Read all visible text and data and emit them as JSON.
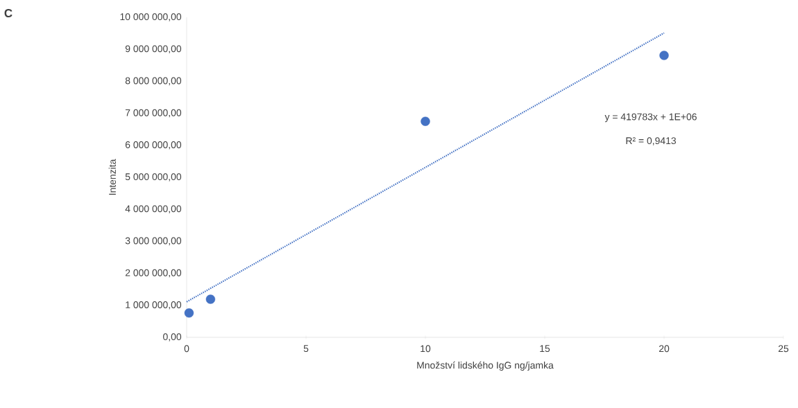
{
  "chart_data": {
    "type": "scatter",
    "xlabel": "Množství lidského IgG ng/jamka",
    "ylabel": "Intenzita",
    "marker": "circle",
    "series": [
      {
        "color": "#4472c4",
        "x": [
          0.1,
          1,
          10,
          20
        ],
        "values": [
          760000,
          1190000,
          6750000,
          8810000
        ]
      },
      {
        "type": "line",
        "color": "#4472c4",
        "line_style": "dotted",
        "marker": "none",
        "x": [
          0,
          20
        ],
        "values": [
          1110000,
          9510000
        ]
      }
    ],
    "xlim": [
      0,
      25
    ],
    "xticks": [
      0,
      5,
      10,
      15,
      20,
      25
    ],
    "ylim": [
      0,
      10000000
    ],
    "yticks": [
      {
        "value": 0,
        "label": "0,00"
      },
      {
        "value": 1000000,
        "label": "1 000 000,00"
      },
      {
        "value": 2000000,
        "label": "2 000 000,00"
      },
      {
        "value": 3000000,
        "label": "3 000 000,00"
      },
      {
        "value": 4000000,
        "label": "4 000 000,00"
      },
      {
        "value": 5000000,
        "label": "5 000 000,00"
      },
      {
        "value": 6000000,
        "label": "6 000 000,00"
      },
      {
        "value": 7000000,
        "label": "7 000 000,00"
      },
      {
        "value": 8000000,
        "label": "8 000 000,00"
      },
      {
        "value": 9000000,
        "label": "9 000 000,00"
      },
      {
        "value": 10000000,
        "label": "10 000 000,00"
      }
    ],
    "grid": false,
    "annotations": [
      "C",
      "y = 419783x + 1E+06",
      "R² = 0,9413"
    ]
  }
}
